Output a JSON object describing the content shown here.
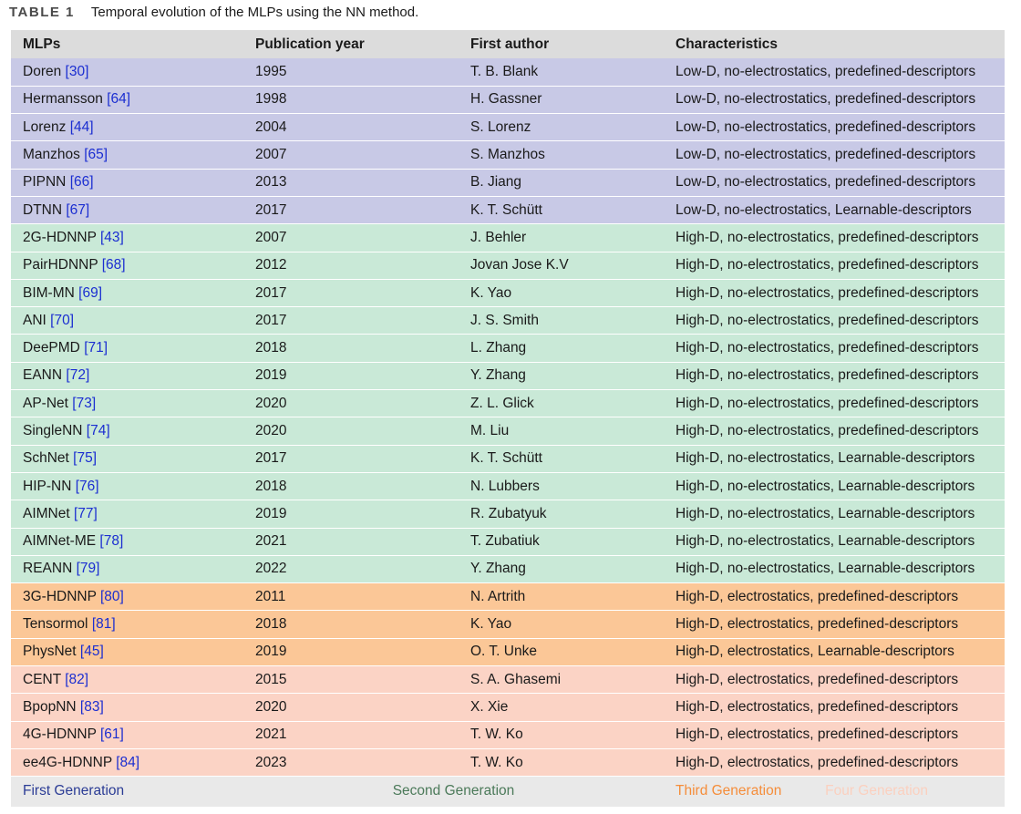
{
  "caption": {
    "label": "TABLE 1",
    "text": "Temporal evolution of the MLPs using the NN method."
  },
  "columns": [
    "MLPs",
    "Publication year",
    "First author",
    "Characteristics"
  ],
  "rows": [
    {
      "group": "g1",
      "name": "Doren",
      "ref": "[30]",
      "year": "1995",
      "author": "T. B. Blank",
      "chars": "Low-D, no-electrostatics, predefined-descriptors"
    },
    {
      "group": "g1",
      "name": "Hermansson",
      "ref": "[64]",
      "year": "1998",
      "author": "H. Gassner",
      "chars": "Low-D, no-electrostatics, predefined-descriptors"
    },
    {
      "group": "g1",
      "name": "Lorenz",
      "ref": "[44]",
      "year": "2004",
      "author": "S. Lorenz",
      "chars": "Low-D, no-electrostatics, predefined-descriptors"
    },
    {
      "group": "g1",
      "name": "Manzhos",
      "ref": "[65]",
      "year": "2007",
      "author": "S. Manzhos",
      "chars": "Low-D, no-electrostatics, predefined-descriptors"
    },
    {
      "group": "g1",
      "name": "PIPNN",
      "ref": "[66]",
      "year": "2013",
      "author": "B. Jiang",
      "chars": "Low-D, no-electrostatics, predefined-descriptors"
    },
    {
      "group": "g1",
      "name": "DTNN",
      "ref": "[67]",
      "year": "2017",
      "author": "K. T. Schütt",
      "chars": "Low-D, no-electrostatics, Learnable-descriptors"
    },
    {
      "group": "g2",
      "name": "2G-HDNNP",
      "ref": "[43]",
      "year": "2007",
      "author": "J. Behler",
      "chars": "High-D, no-electrostatics, predefined-descriptors"
    },
    {
      "group": "g2",
      "name": "PairHDNNP",
      "ref": "[68]",
      "year": "2012",
      "author": "Jovan Jose K.V",
      "chars": "High-D, no-electrostatics, predefined-descriptors"
    },
    {
      "group": "g2",
      "name": "BIM-MN",
      "ref": "[69]",
      "year": "2017",
      "author": "K. Yao",
      "chars": "High-D, no-electrostatics, predefined-descriptors"
    },
    {
      "group": "g2",
      "name": "ANI",
      "ref": "[70]",
      "year": "2017",
      "author": "J. S. Smith",
      "chars": "High-D, no-electrostatics, predefined-descriptors"
    },
    {
      "group": "g2",
      "name": "DeePMD",
      "ref": "[71]",
      "year": "2018",
      "author": "L. Zhang",
      "chars": "High-D, no-electrostatics, predefined-descriptors"
    },
    {
      "group": "g2",
      "name": "EANN",
      "ref": "[72]",
      "year": "2019",
      "author": "Y. Zhang",
      "chars": "High-D, no-electrostatics, predefined-descriptors"
    },
    {
      "group": "g2",
      "name": "AP-Net",
      "ref": "[73]",
      "year": "2020",
      "author": "Z. L. Glick",
      "chars": "High-D, no-electrostatics, predefined-descriptors"
    },
    {
      "group": "g2",
      "name": "SingleNN",
      "ref": "[74]",
      "year": "2020",
      "author": "M. Liu",
      "chars": "High-D, no-electrostatics, predefined-descriptors"
    },
    {
      "group": "g2",
      "name": "SchNet",
      "ref": "[75]",
      "year": "2017",
      "author": "K. T. Schütt",
      "chars": "High-D, no-electrostatics, Learnable-descriptors"
    },
    {
      "group": "g2",
      "name": "HIP-NN",
      "ref": "[76]",
      "year": "2018",
      "author": "N. Lubbers",
      "chars": "High-D, no-electrostatics, Learnable-descriptors"
    },
    {
      "group": "g2",
      "name": "AIMNet",
      "ref": "[77]",
      "year": "2019",
      "author": "R. Zubatyuk",
      "chars": "High-D, no-electrostatics, Learnable-descriptors"
    },
    {
      "group": "g2",
      "name": "AIMNet-ME",
      "ref": "[78]",
      "year": "2021",
      "author": "T. Zubatiuk",
      "chars": "High-D, no-electrostatics, Learnable-descriptors"
    },
    {
      "group": "g2",
      "name": "REANN",
      "ref": "[79]",
      "year": "2022",
      "author": "Y. Zhang",
      "chars": "High-D, no-electrostatics, Learnable-descriptors"
    },
    {
      "group": "g3",
      "name": "3G-HDNNP",
      "ref": "[80]",
      "year": "2011",
      "author": "N. Artrith",
      "chars": "High-D, electrostatics, predefined-descriptors"
    },
    {
      "group": "g3",
      "name": "Tensormol",
      "ref": "[81]",
      "year": "2018",
      "author": "K. Yao",
      "chars": "High-D, electrostatics, predefined-descriptors"
    },
    {
      "group": "g3",
      "name": "PhysNet",
      "ref": "[45]",
      "year": "2019",
      "author": "O. T. Unke",
      "chars": "High-D, electrostatics, Learnable-descriptors"
    },
    {
      "group": "g4",
      "name": "CENT",
      "ref": "[82]",
      "year": "2015",
      "author": "S. A. Ghasemi",
      "chars": "High-D, electrostatics, predefined-descriptors"
    },
    {
      "group": "g4",
      "name": "BpopNN",
      "ref": "[83]",
      "year": "2020",
      "author": "X. Xie",
      "chars": "High-D, electrostatics, predefined-descriptors"
    },
    {
      "group": "g4",
      "name": "4G-HDNNP",
      "ref": "[61]",
      "year": "2021",
      "author": "T. W. Ko",
      "chars": "High-D, electrostatics, predefined-descriptors"
    },
    {
      "group": "g4",
      "name": "ee4G-HDNNP",
      "ref": "[84]",
      "year": "2023",
      "author": "T. W. Ko",
      "chars": "High-D, electrostatics, predefined-descriptors"
    }
  ],
  "legend": {
    "first": "First Generation",
    "second": "Second Generation",
    "third": "Third Generation",
    "fourth": "Four Generation"
  },
  "colors": {
    "first_generation_bg": "#c8c9e6",
    "second_generation_bg": "#c9e9d7",
    "third_generation_bg": "#fbc797",
    "fourth_generation_bg": "#fbd3c5",
    "reference_link": "#1b2ed1"
  }
}
